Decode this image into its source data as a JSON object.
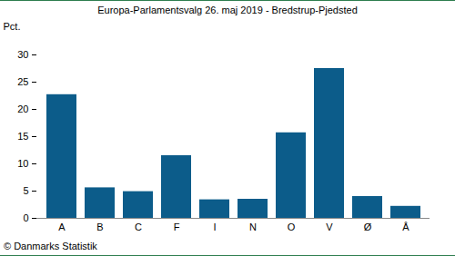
{
  "chart_data": {
    "type": "bar",
    "title": "Europa-Parlamentsvalg 26. maj 2019 - Bredstrup-Pjedsted",
    "y_label": "Pct.",
    "caption": "© Danmarks Statistik",
    "categories": [
      "A",
      "B",
      "C",
      "F",
      "I",
      "N",
      "O",
      "V",
      "Ø",
      "Å"
    ],
    "values": [
      22.7,
      5.6,
      4.9,
      11.5,
      3.4,
      3.5,
      15.7,
      27.5,
      4.0,
      2.2
    ],
    "color": "#0c5c8a",
    "ylim": [
      0,
      30
    ],
    "yticks": [
      0,
      5,
      10,
      15,
      20,
      25,
      30
    ],
    "grid": false
  }
}
